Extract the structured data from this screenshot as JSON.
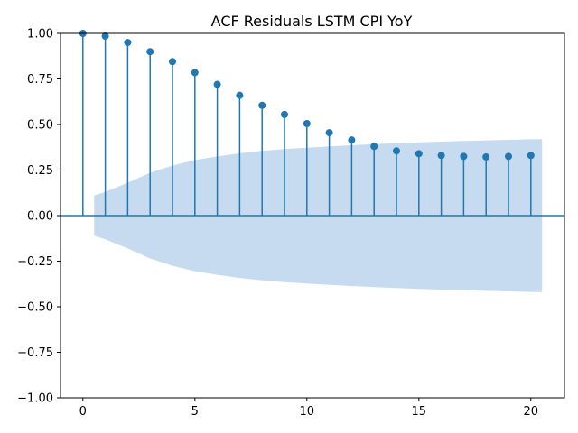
{
  "chart_data": {
    "type": "stem",
    "title": "ACF Residuals LSTM CPI YoY",
    "xlabel": "",
    "ylabel": "",
    "xlim": [
      -1,
      21.5
    ],
    "ylim": [
      -1.0,
      1.0
    ],
    "x_ticks": [
      0,
      5,
      10,
      15,
      20
    ],
    "y_ticks": [
      -1.0,
      -0.75,
      -0.5,
      -0.25,
      0.0,
      0.25,
      0.5,
      0.75,
      1.0
    ],
    "y_tick_labels": [
      "−1.00",
      "−0.75",
      "−0.50",
      "−0.25",
      "0.00",
      "0.25",
      "0.50",
      "0.75",
      "1.00"
    ],
    "x_tick_labels": [
      "0",
      "5",
      "10",
      "15",
      "20"
    ],
    "lags": [
      0,
      1,
      2,
      3,
      4,
      5,
      6,
      7,
      8,
      9,
      10,
      11,
      12,
      13,
      14,
      15,
      16,
      17,
      18,
      19,
      20
    ],
    "acf": [
      1.0,
      0.985,
      0.95,
      0.9,
      0.845,
      0.785,
      0.72,
      0.66,
      0.605,
      0.555,
      0.505,
      0.455,
      0.415,
      0.38,
      0.355,
      0.34,
      0.33,
      0.325,
      0.322,
      0.325,
      0.33
    ],
    "confidence_band": {
      "x": [
        0.5,
        1,
        2,
        3,
        4,
        5,
        6,
        7,
        8,
        9,
        10,
        11,
        12,
        13,
        14,
        15,
        16,
        17,
        18,
        19,
        20,
        20.5
      ],
      "upper": [
        0.11,
        0.13,
        0.18,
        0.235,
        0.275,
        0.305,
        0.325,
        0.342,
        0.355,
        0.365,
        0.373,
        0.38,
        0.386,
        0.392,
        0.397,
        0.402,
        0.406,
        0.41,
        0.413,
        0.416,
        0.419,
        0.42
      ]
    },
    "colors": {
      "stem": "#1f77b4",
      "band": "#c6dbef",
      "zero_line": "#1f77b4"
    },
    "grid": false
  }
}
